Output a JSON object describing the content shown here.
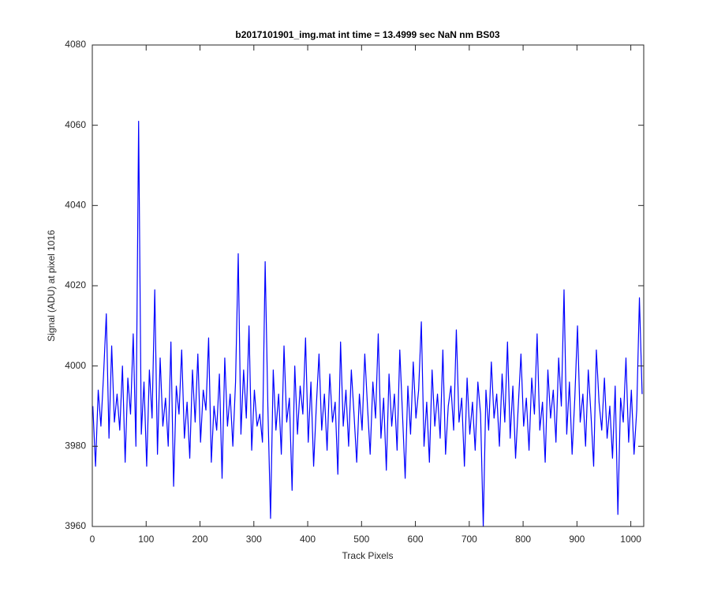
{
  "chart_data": {
    "type": "line",
    "title": "b2017101901_img.mat int time = 13.4999 sec  NaN nm BS03",
    "xlabel": "Track Pixels",
    "ylabel": "Signal (ADU) at pixel 1016",
    "xlim": [
      0,
      1024
    ],
    "ylim": [
      3960,
      4080
    ],
    "xticks": [
      0,
      100,
      200,
      300,
      400,
      500,
      600,
      700,
      800,
      900,
      1000
    ],
    "yticks": [
      3960,
      3980,
      4000,
      4020,
      4040,
      4060,
      4080
    ],
    "x": [
      1,
      6,
      11,
      16,
      21,
      26,
      31,
      36,
      41,
      46,
      51,
      56,
      61,
      66,
      71,
      76,
      81,
      86,
      91,
      96,
      101,
      106,
      111,
      116,
      121,
      126,
      131,
      136,
      141,
      146,
      151,
      156,
      161,
      166,
      171,
      176,
      181,
      186,
      191,
      196,
      201,
      206,
      211,
      216,
      221,
      226,
      231,
      236,
      241,
      246,
      251,
      256,
      261,
      266,
      271,
      276,
      281,
      286,
      291,
      296,
      301,
      306,
      311,
      316,
      321,
      326,
      331,
      336,
      341,
      346,
      351,
      356,
      361,
      366,
      371,
      376,
      381,
      386,
      391,
      396,
      401,
      406,
      411,
      416,
      421,
      426,
      431,
      436,
      441,
      446,
      451,
      456,
      461,
      466,
      471,
      476,
      481,
      486,
      491,
      496,
      501,
      506,
      511,
      516,
      521,
      526,
      531,
      536,
      541,
      546,
      551,
      556,
      561,
      566,
      571,
      576,
      581,
      586,
      591,
      596,
      601,
      606,
      611,
      616,
      621,
      626,
      631,
      636,
      641,
      646,
      651,
      656,
      661,
      666,
      671,
      676,
      681,
      686,
      691,
      696,
      701,
      706,
      711,
      716,
      721,
      726,
      731,
      736,
      741,
      746,
      751,
      756,
      761,
      766,
      771,
      776,
      781,
      786,
      791,
      796,
      801,
      806,
      811,
      816,
      821,
      826,
      831,
      836,
      841,
      846,
      851,
      856,
      861,
      866,
      871,
      876,
      881,
      886,
      891,
      896,
      901,
      906,
      911,
      916,
      921,
      926,
      931,
      936,
      941,
      946,
      951,
      956,
      961,
      966,
      971,
      976,
      981,
      986,
      991,
      996,
      1001,
      1006,
      1011,
      1016,
      1021
    ],
    "series": [
      {
        "color": "#0000ff",
        "values": [
          3990,
          3975,
          3994,
          3985,
          3998,
          4013,
          3982,
          4005,
          3986,
          3993,
          3984,
          4000,
          3976,
          3997,
          3988,
          4008,
          3980,
          4061,
          3983,
          3996,
          3975,
          3999,
          3987,
          4019,
          3978,
          4002,
          3985,
          3992,
          3980,
          4006,
          3970,
          3995,
          3988,
          4004,
          3982,
          3991,
          3977,
          3999,
          3986,
          4003,
          3981,
          3994,
          3989,
          4007,
          3976,
          3990,
          3984,
          3998,
          3972,
          4002,
          3985,
          3993,
          3980,
          3996,
          4028,
          3983,
          3999,
          3987,
          4010,
          3979,
          3994,
          3985,
          3988,
          3981,
          4026,
          3990,
          3962,
          3999,
          3984,
          3993,
          3978,
          4005,
          3986,
          3992,
          3969,
          4000,
          3983,
          3995,
          3988,
          4007,
          3981,
          3996,
          3975,
          3990,
          4003,
          3984,
          3993,
          3979,
          3998,
          3986,
          3991,
          3973,
          4006,
          3985,
          3994,
          3980,
          3999,
          3988,
          3976,
          3993,
          3984,
          4003,
          3990,
          3978,
          3996,
          3987,
          4008,
          3982,
          3992,
          3974,
          3998,
          3985,
          3993,
          3979,
          4004,
          3988,
          3972,
          3995,
          3983,
          4001,
          3987,
          3994,
          4011,
          3980,
          3991,
          3976,
          3999,
          3985,
          3993,
          3982,
          4004,
          3978,
          3990,
          3995,
          3984,
          4009,
          3986,
          3992,
          3975,
          3997,
          3983,
          3991,
          3979,
          3996,
          3988,
          3960,
          3994,
          3984,
          4001,
          3987,
          3993,
          3980,
          3998,
          3986,
          4006,
          3982,
          3995,
          3977,
          3990,
          4003,
          3985,
          3992,
          3979,
          3997,
          3988,
          4008,
          3984,
          3991,
          3976,
          3999,
          3987,
          3994,
          3981,
          4002,
          3990,
          4019,
          3983,
          3996,
          3978,
          3992,
          4010,
          3986,
          3993,
          3980,
          3999,
          3988,
          3975,
          4004,
          3991,
          3984,
          3997,
          3982,
          3990,
          3977,
          3995,
          3963,
          3992,
          3986,
          4002,
          3981,
          3994,
          3978,
          3989,
          4017,
          3993
        ]
      }
    ]
  }
}
